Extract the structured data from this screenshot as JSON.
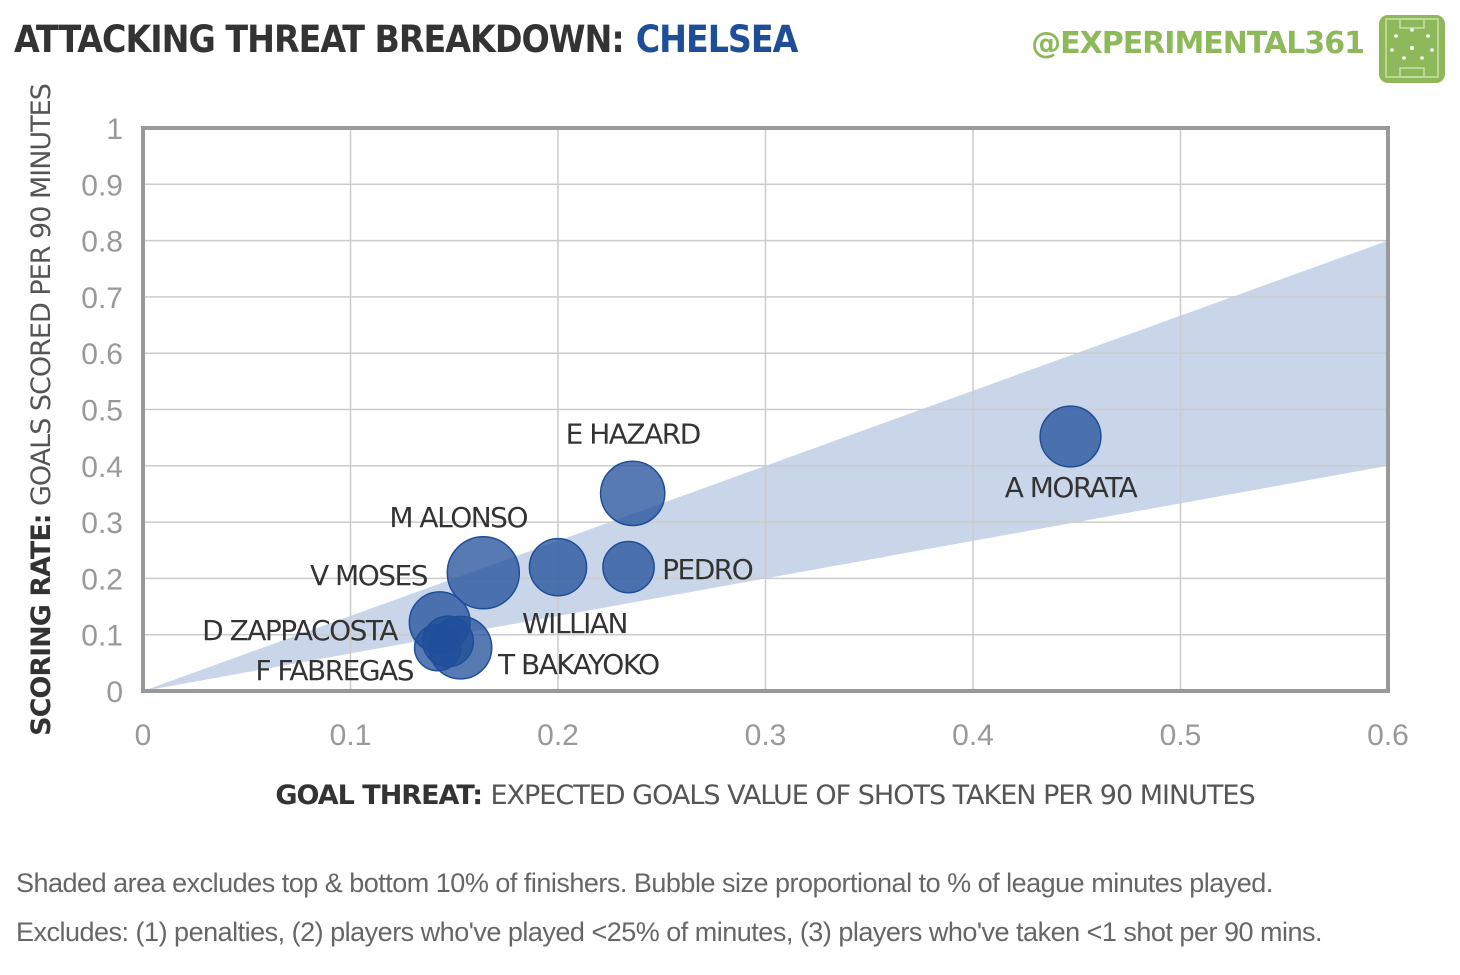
{
  "header": {
    "title": "ATTACKING THREAT BREAKDOWN:",
    "team": "CHELSEA",
    "handle": "@EXPERIMENTAL361"
  },
  "footnotes": [
    "Shaded area excludes top & bottom 10% of finishers. Bubble size proportional to % of league minutes played.",
    "Excludes: (1) penalties, (2) players who've played <25% of minutes, (3) players who've taken <1 shot per 90 mins."
  ],
  "colors": {
    "bubble": "#1f4e99",
    "band": "#c9d5e8",
    "title_accent": "#1f4e99",
    "handle": "#8db95a",
    "grid": "#cccccc",
    "frame": "#999999"
  },
  "icons": [
    "pitch-logo-icon"
  ],
  "chart_data": {
    "type": "scatter",
    "variant": "bubble",
    "xlabel_bold": "GOAL THREAT:",
    "xlabel_rest": "EXPECTED GOALS VALUE OF SHOTS TAKEN PER 90 MINUTES",
    "ylabel_bold": "SCORING RATE:",
    "ylabel_rest": "GOALS SCORED PER 90 MINUTES",
    "xlim": [
      0,
      0.6
    ],
    "ylim": [
      0,
      1
    ],
    "xticks": [
      0,
      0.1,
      0.2,
      0.3,
      0.4,
      0.5,
      0.6
    ],
    "xtick_labels": [
      "0",
      "0.1",
      "0.2",
      "0.3",
      "0.4",
      "0.5",
      "0.6"
    ],
    "yticks": [
      0,
      0.1,
      0.2,
      0.3,
      0.4,
      0.5,
      0.6,
      0.7,
      0.8,
      0.9,
      1
    ],
    "ytick_labels": [
      "0",
      "0.1",
      "0.2",
      "0.3",
      "0.4",
      "0.5",
      "0.6",
      "0.7",
      "0.8",
      "0.9",
      "1"
    ],
    "grid": true,
    "band": {
      "x": [
        0,
        0.6
      ],
      "upper": [
        0,
        0.8
      ],
      "lower": [
        0,
        0.4
      ]
    },
    "points": [
      {
        "label": "A MORATA",
        "x": 0.447,
        "y": 0.452,
        "minutes_pct": 0.52,
        "label_pos": "below"
      },
      {
        "label": "E HAZARD",
        "x": 0.236,
        "y": 0.351,
        "minutes_pct": 0.58,
        "label_pos": "above"
      },
      {
        "label": "M ALONSO",
        "x": 0.164,
        "y": 0.21,
        "minutes_pct": 0.73,
        "label_pos": "above-left"
      },
      {
        "label": "WILLIAN",
        "x": 0.2,
        "y": 0.22,
        "minutes_pct": 0.46,
        "label_pos": "below-right"
      },
      {
        "label": "PEDRO",
        "x": 0.234,
        "y": 0.22,
        "minutes_pct": 0.37,
        "label_pos": "right"
      },
      {
        "label": "V MOSES",
        "x": 0.143,
        "y": 0.122,
        "minutes_pct": 0.52,
        "label_pos": "above-left"
      },
      {
        "label": "D ZAPPACOSTA",
        "x": 0.147,
        "y": 0.088,
        "minutes_pct": 0.36,
        "label_pos": "left"
      },
      {
        "label": "T BAKAYOKO",
        "x": 0.153,
        "y": 0.077,
        "minutes_pct": 0.55,
        "label_pos": "right"
      },
      {
        "label": "F FABREGAS",
        "x": 0.142,
        "y": 0.077,
        "minutes_pct": 0.3,
        "label_pos": "below-left"
      }
    ]
  }
}
